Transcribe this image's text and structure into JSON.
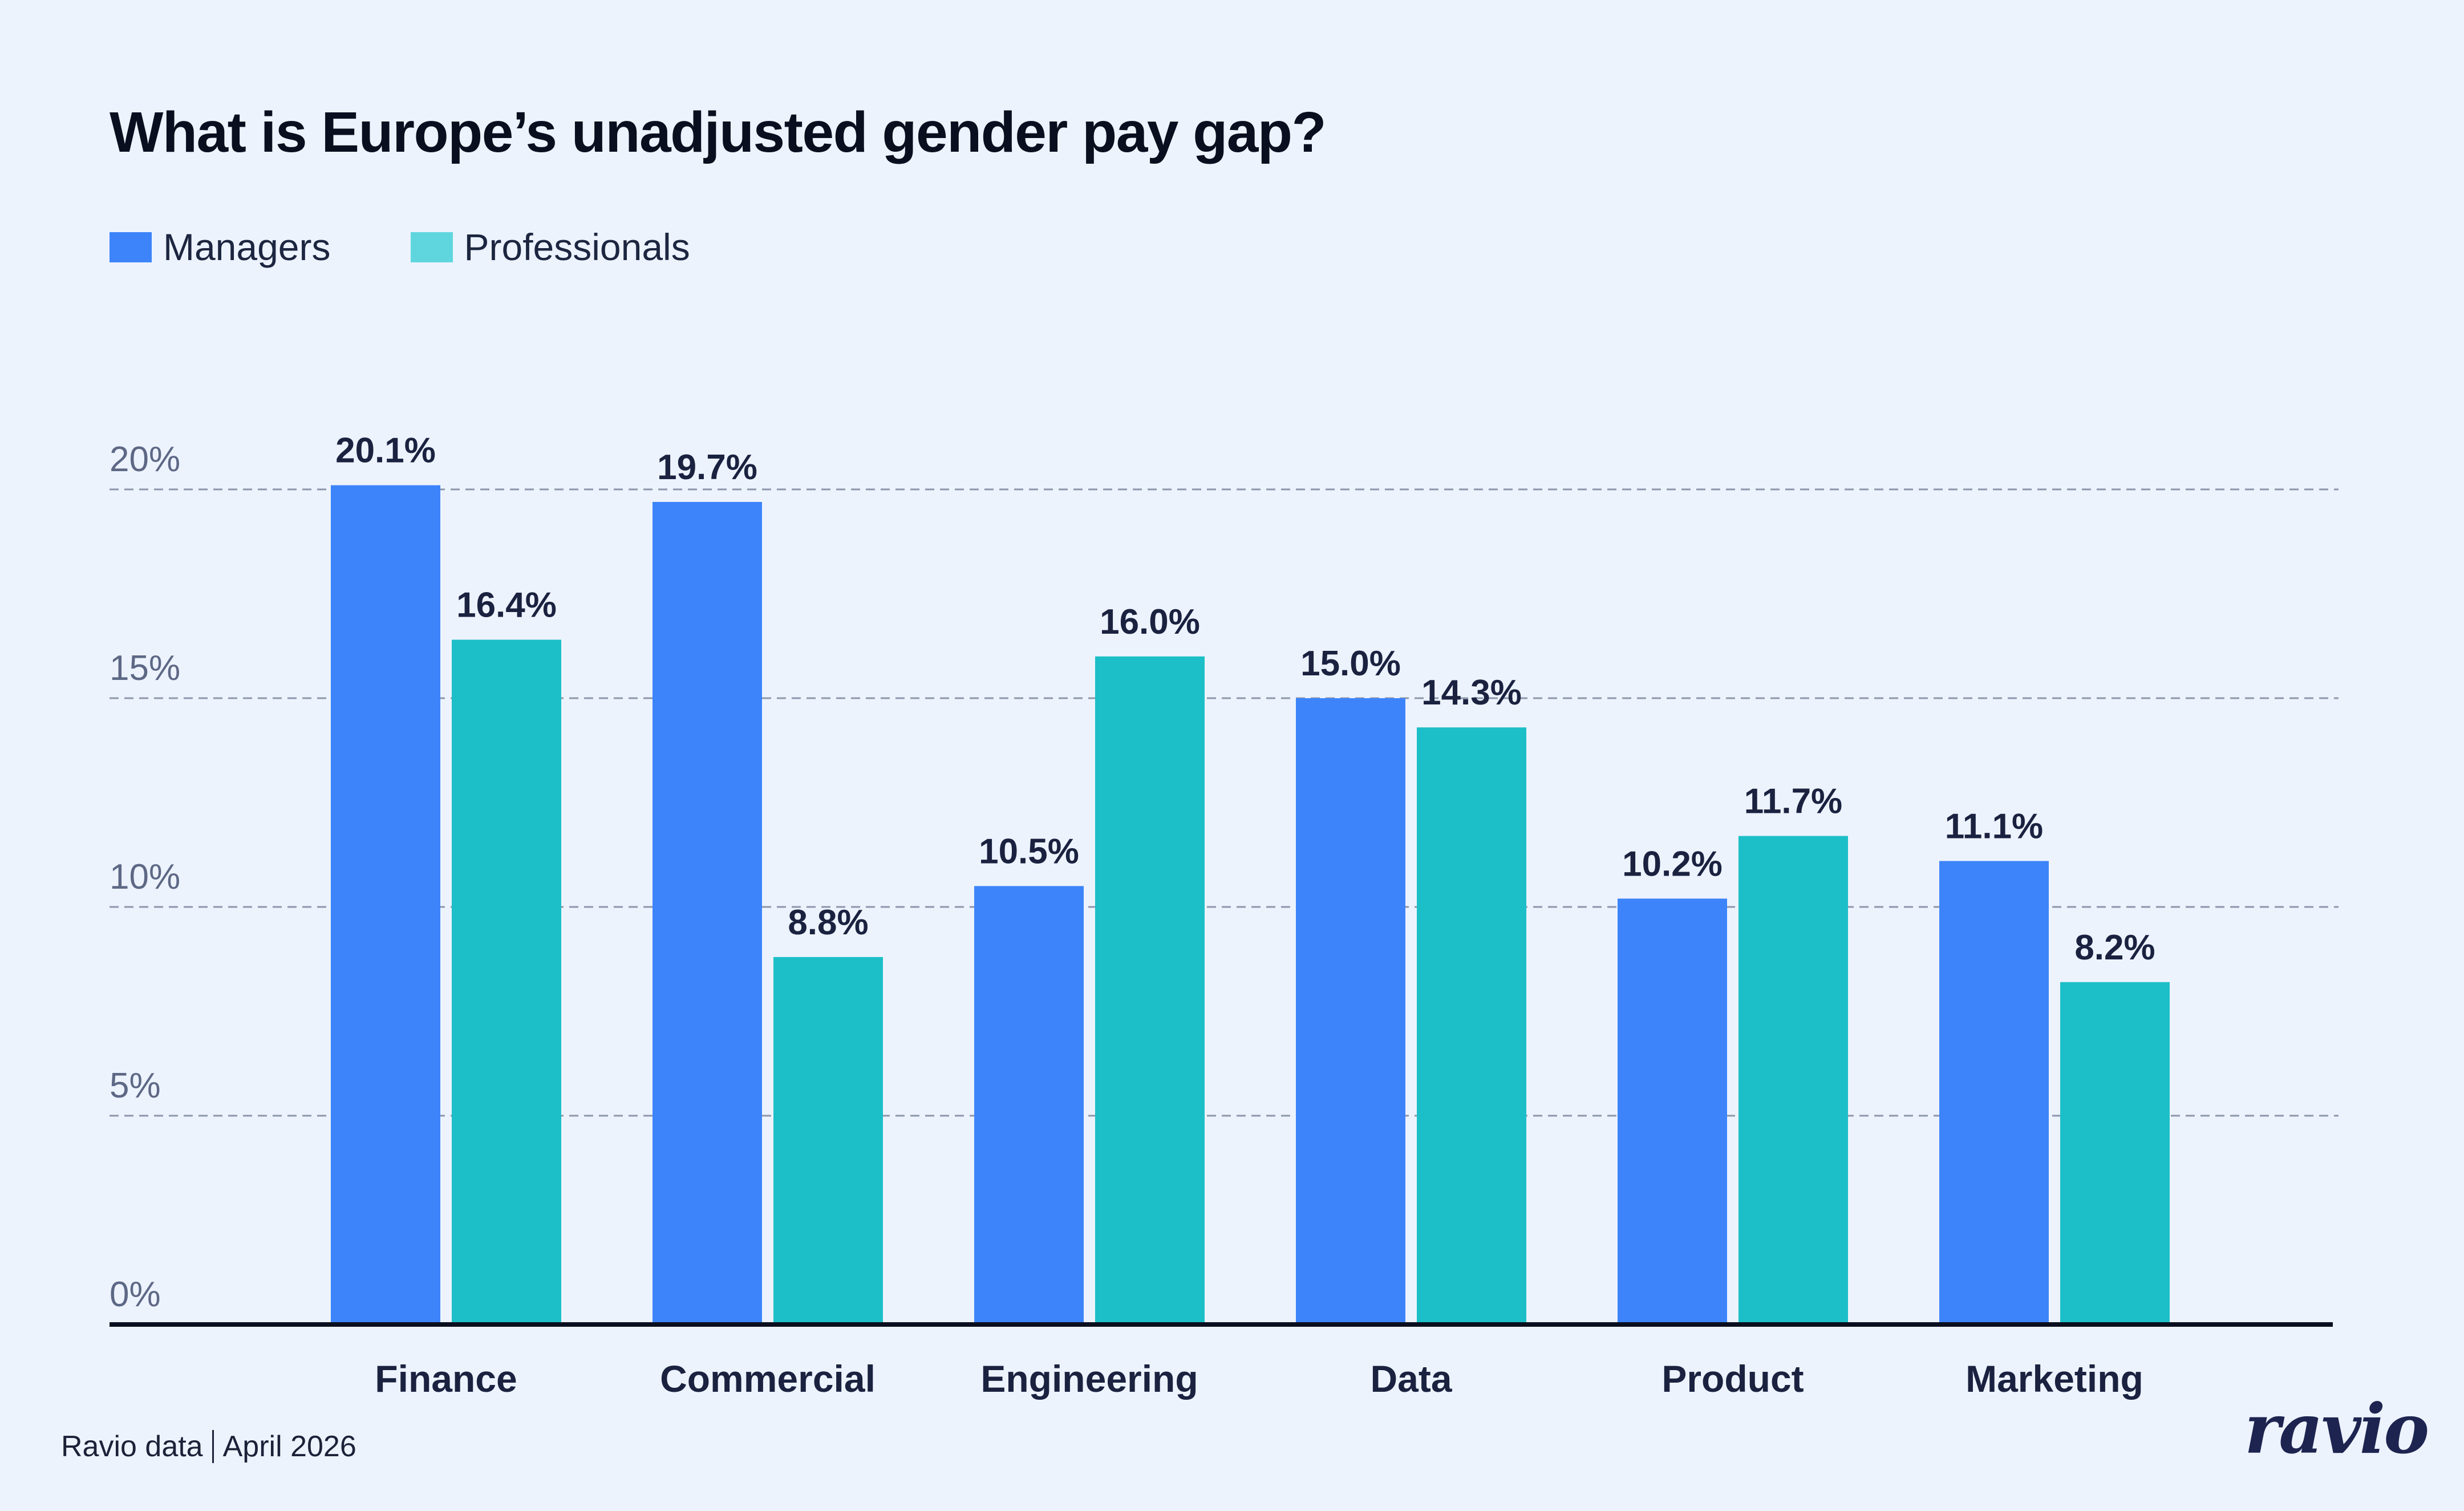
{
  "title": "What is Europe’s unadjusted gender pay gap?",
  "legend": [
    {
      "label": "Managers",
      "color": "#3d84fb"
    },
    {
      "label": "Professionals",
      "color": "#5fd6de"
    }
  ],
  "footer": {
    "source": "Ravio data",
    "date": "April 2026"
  },
  "logo": {
    "text": "ravio"
  },
  "chart_data": {
    "type": "bar",
    "title": "What is Europe’s unadjusted gender pay gap?",
    "categories": [
      "Finance",
      "Commercial",
      "Engineering",
      "Data",
      "Product",
      "Marketing"
    ],
    "series": [
      {
        "name": "Managers",
        "color": "#3d84fb",
        "values": [
          20.1,
          19.7,
          10.5,
          15.0,
          10.2,
          11.1
        ],
        "labels": [
          "20.1%",
          "19.7%",
          "10.5%",
          "15.0%",
          "10.2%",
          "11.1%"
        ]
      },
      {
        "name": "Professionals",
        "color": "#1cbfc8",
        "values": [
          16.4,
          8.8,
          16.0,
          14.3,
          11.7,
          8.2
        ],
        "labels": [
          "16.4%",
          "8.8%",
          "16.0%",
          "14.3%",
          "11.7%",
          "8.2%"
        ]
      }
    ],
    "yticks": [
      0,
      5,
      10,
      15,
      20
    ],
    "ytick_labels": [
      "0%",
      "5%",
      "10%",
      "15%",
      "20%"
    ],
    "ylim": [
      0,
      20
    ],
    "xlabel": "",
    "ylabel": "",
    "grid": true,
    "legend_position": "top-left"
  }
}
